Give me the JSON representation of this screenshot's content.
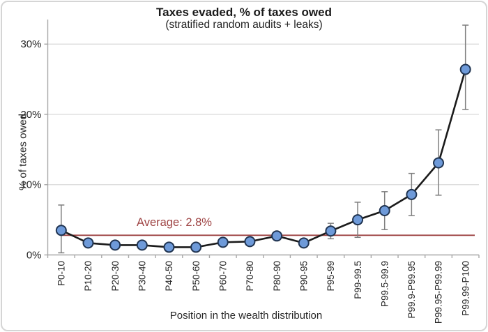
{
  "chart_data": {
    "type": "line",
    "title": "Taxes evaded, % of taxes owed",
    "subtitle": "(stratified random audits + leaks)",
    "xlabel": "Position in the wealth distribution",
    "ylabel": "% of taxes owed",
    "categories": [
      "P0-10",
      "P10-20",
      "P20-30",
      "P30-40",
      "P40-50",
      "P50-60",
      "P60-70",
      "P70-80",
      "P80-90",
      "P90-95",
      "P95-99",
      "P99-99.5",
      "P99.5-99.9",
      "P99.9-P99.95",
      "P99.95-P99.99",
      "P99.99-P100"
    ],
    "values": [
      3.5,
      1.7,
      1.4,
      1.4,
      1.1,
      1.1,
      1.8,
      1.9,
      2.7,
      1.7,
      3.4,
      5.0,
      6.3,
      8.6,
      13.1,
      26.4
    ],
    "err_low": [
      0.3,
      1.1,
      0.9,
      0.9,
      0.6,
      0.6,
      1.2,
      1.4,
      2.2,
      1.1,
      2.3,
      2.5,
      3.6,
      5.6,
      8.5,
      20.7
    ],
    "err_high": [
      7.1,
      2.3,
      1.9,
      1.9,
      1.6,
      1.6,
      2.4,
      2.4,
      3.2,
      2.3,
      4.5,
      7.5,
      9.0,
      11.6,
      17.8,
      32.7
    ],
    "average": {
      "label": "Average: 2.8%",
      "value": 2.8
    },
    "y_tick_values": [
      0,
      10,
      20,
      30
    ],
    "y_tick_labels": [
      "0%",
      "10%",
      "20%",
      "30%"
    ],
    "ylim": [
      0,
      33.3
    ],
    "grid": "horizontal",
    "legend": "none",
    "colors": {
      "point_fill": "#6e9ad9",
      "point_stroke": "#203451",
      "line": "#1b1b1b",
      "error_bar": "#7f7f7f",
      "grid": "#d9d9d9",
      "axis": "#a8a8a8",
      "average": "#9e4343",
      "text": "#262626"
    }
  }
}
